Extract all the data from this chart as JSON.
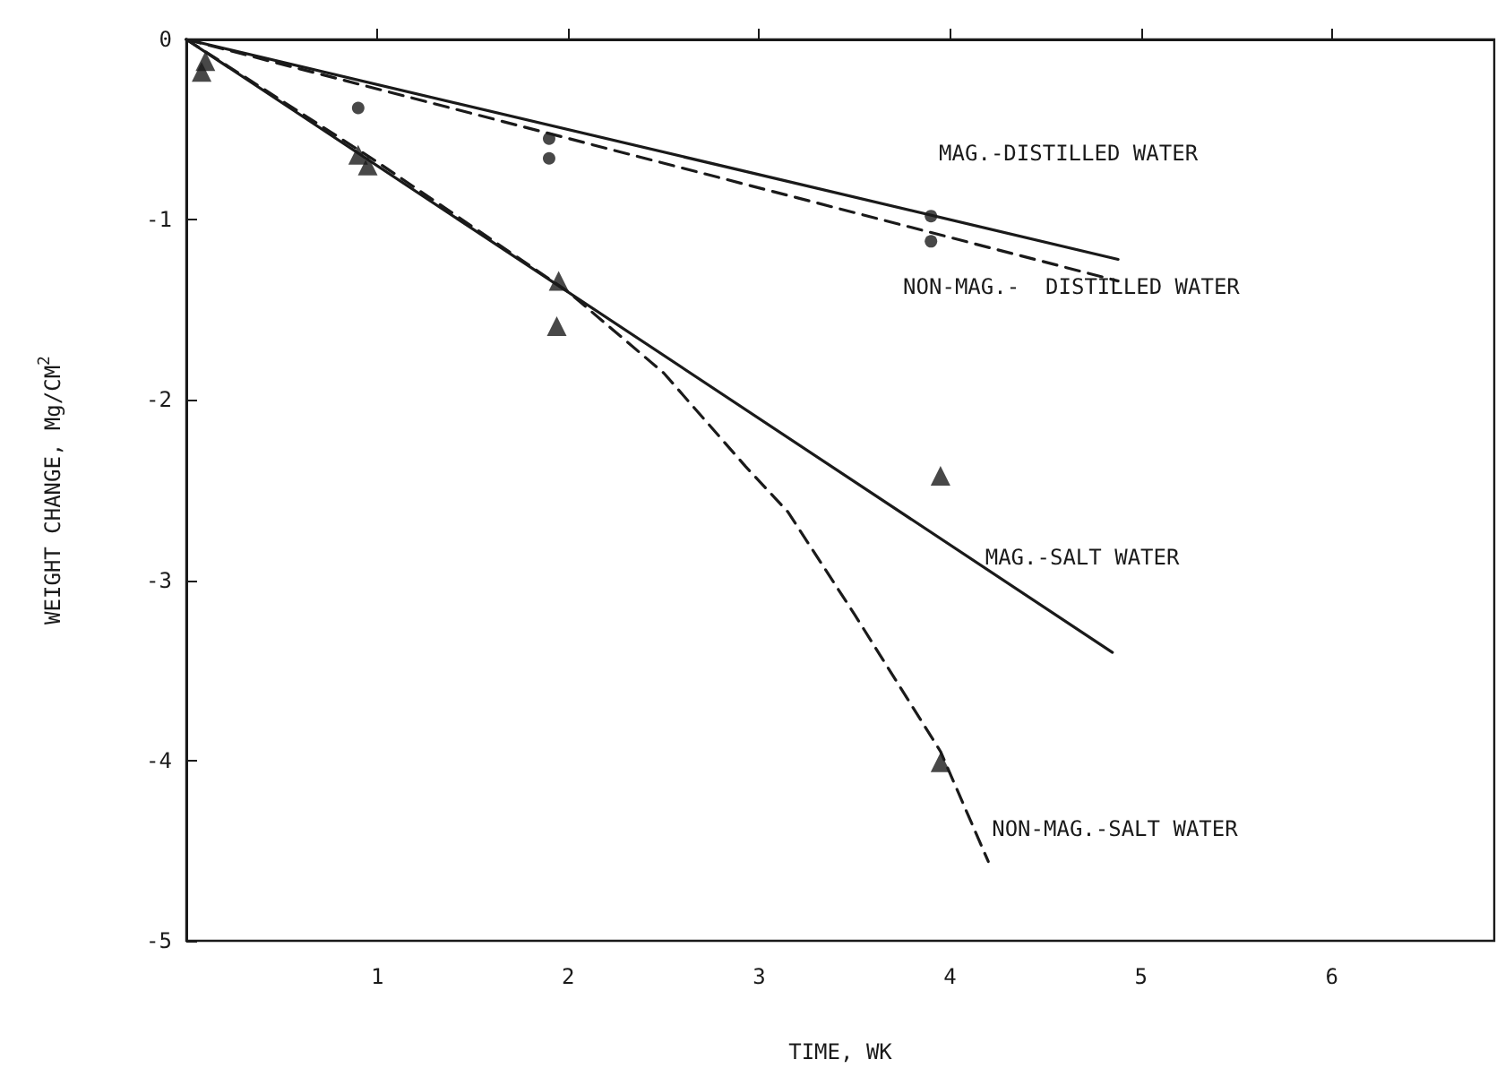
{
  "chart_data": {
    "type": "line",
    "xlabel": "TIME, WK",
    "ylabel": "WEIGHT CHANGE, Mg/CM$^{2}$",
    "xlim": [
      0,
      6.85
    ],
    "xticks": [
      1,
      2,
      3,
      4,
      5,
      6
    ],
    "ylim": [
      -5,
      0
    ],
    "yticks": [
      0,
      -1,
      -2,
      -3,
      -4,
      -5
    ],
    "grid": false,
    "series": [
      {
        "name": "MAG.-DISTILLED WATER",
        "color": "#1a1a1a",
        "line_style": "solid",
        "marker": "none",
        "x": [
          0,
          4.88
        ],
        "values": [
          0,
          -1.22
        ]
      },
      {
        "name": "NON-MAG.-  DISTILLED WATER",
        "color": "#1a1a1a",
        "line_style": "dashed",
        "marker": "none",
        "x": [
          0,
          4.88
        ],
        "values": [
          0,
          -1.34
        ]
      },
      {
        "name": "MAG.-SALT WATER",
        "color": "#1a1a1a",
        "line_style": "solid",
        "marker": "none",
        "x": [
          0,
          4.85
        ],
        "values": [
          0,
          -3.4
        ]
      },
      {
        "name": "NON-MAG.-SALT WATER",
        "color": "#1a1a1a",
        "line_style": "dashed",
        "marker": "none",
        "x": [
          0,
          1,
          2,
          2.5,
          2.93,
          3.15,
          3.5,
          3.95,
          4.2
        ],
        "values": [
          0,
          -0.68,
          -1.4,
          -1.85,
          -2.37,
          -2.62,
          -3.19,
          -3.95,
          -4.56
        ]
      },
      {
        "type": "scatter",
        "color": "#1a1a1a",
        "marker": "circle",
        "x": [
          1.9,
          3.9
        ],
        "values": [
          -0.55,
          -0.98
        ]
      },
      {
        "type": "scatter",
        "color": "#1a1a1a",
        "marker": "circle",
        "x": [
          0.9,
          1.9,
          3.9
        ],
        "values": [
          -0.38,
          -0.66,
          -1.12
        ]
      },
      {
        "type": "scatter",
        "color": "#1a1a1a",
        "marker": "triangle",
        "x": [
          0.08,
          0.95,
          1.94,
          3.95
        ],
        "values": [
          -0.18,
          -0.7,
          -1.59,
          -2.42
        ]
      },
      {
        "type": "scatter",
        "color": "#1a1a1a",
        "marker": "triangle",
        "x": [
          0.1,
          0.9,
          1.95,
          3.95
        ],
        "values": [
          -0.12,
          -0.64,
          -1.34,
          -4.01
        ]
      }
    ]
  }
}
